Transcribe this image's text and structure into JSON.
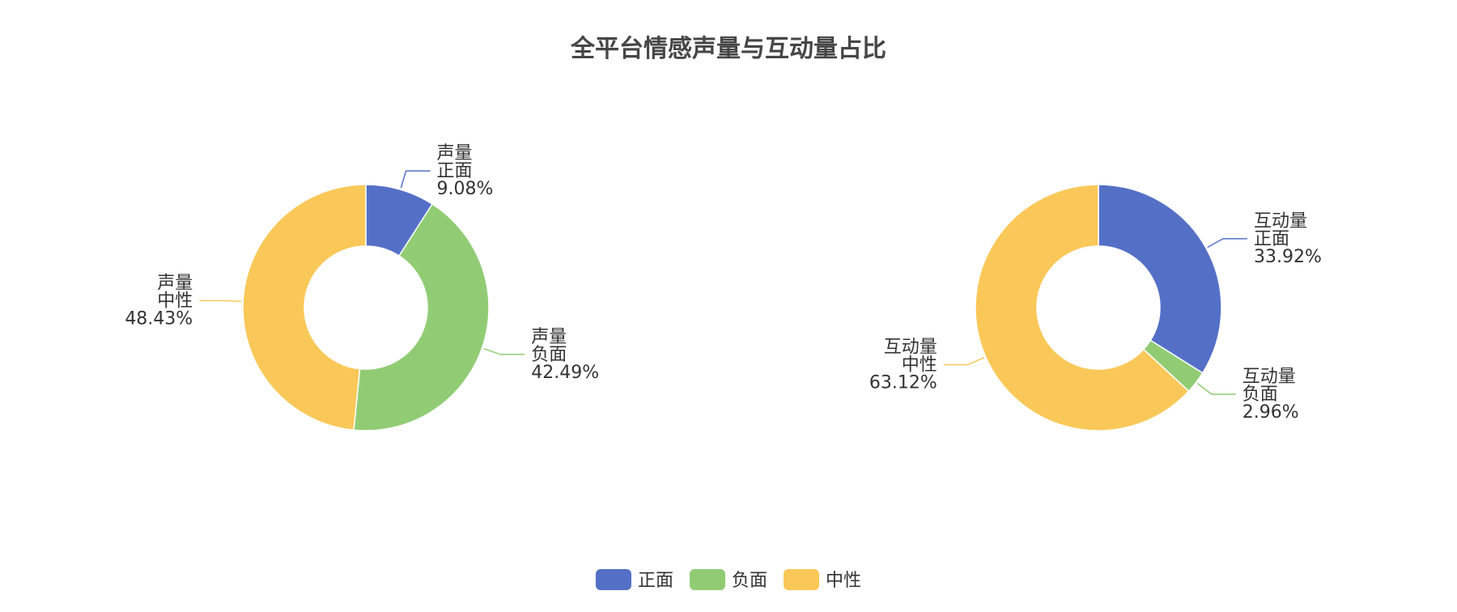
{
  "chart_data": {
    "type": "pie",
    "variant": "donut",
    "title": "全平台情感声量与互动量占比",
    "legend": {
      "position": "bottom-center",
      "items": [
        {
          "name": "正面",
          "color": "#5470C6"
        },
        {
          "name": "负面",
          "color": "#91CC75"
        },
        {
          "name": "中性",
          "color": "#FAC858"
        }
      ]
    },
    "charts": [
      {
        "series_label": "声量",
        "slices": [
          {
            "name": "正面",
            "percent": "9.08%",
            "value": 9.08,
            "color": "#5470C6"
          },
          {
            "name": "负面",
            "percent": "42.49%",
            "value": 42.49,
            "color": "#91CC75"
          },
          {
            "name": "中性",
            "percent": "48.43%",
            "value": 48.43,
            "color": "#FAC858"
          }
        ]
      },
      {
        "series_label": "互动量",
        "slices": [
          {
            "name": "正面",
            "percent": "33.92%",
            "value": 33.92,
            "color": "#5470C6"
          },
          {
            "name": "负面",
            "percent": "2.96%",
            "value": 2.96,
            "color": "#91CC75"
          },
          {
            "name": "中性",
            "percent": "63.12%",
            "value": 63.12,
            "color": "#FAC858"
          }
        ]
      }
    ]
  }
}
